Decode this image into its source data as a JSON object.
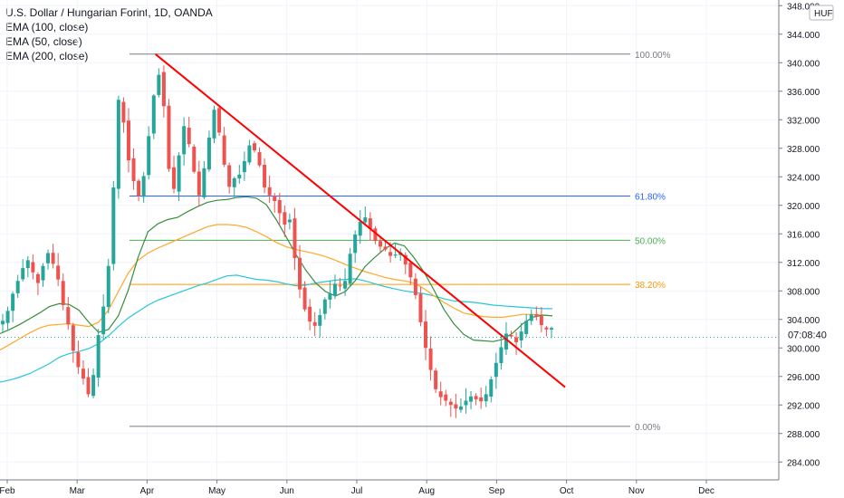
{
  "legend": {
    "title": "U.S. Dollar / Hungarian Forint, 1D, OANDA",
    "ema100": "EMA (100, close)",
    "ema50": "EMA (50, close)",
    "ema200": "EMA (200, close)"
  },
  "price_axis": {
    "currency": "HUF",
    "current_time_label": "07:08:40"
  },
  "colors": {
    "up": "#26a69a",
    "down": "#ef5350",
    "trendline": "#ff0000",
    "ema50": "#388e3c",
    "ema100": "#ffa726",
    "ema200": "#26c6da",
    "fib_0": "#787b86",
    "fib_382": "#ff9800",
    "fib_50": "#4caf50",
    "fib_618": "#2962ff",
    "fib_100": "#787b86"
  },
  "chart_data": {
    "type": "candlestick",
    "y_ticks": [
      284,
      288,
      292,
      296,
      300,
      304,
      308,
      312,
      316,
      320,
      324,
      328,
      332,
      336,
      340,
      344,
      348
    ],
    "ylim": [
      282.5,
      349
    ],
    "x_ticks": [
      "Feb",
      "Mar",
      "Apr",
      "May",
      "Jun",
      "Jul",
      "Aug",
      "Sep",
      "Oct",
      "Nov",
      "Dec"
    ],
    "fib_levels": [
      {
        "label": "100.00%",
        "value": 341.2
      },
      {
        "label": "61.80%",
        "value": 321.3
      },
      {
        "label": "50.00%",
        "value": 315.1
      },
      {
        "label": "38.20%",
        "value": 308.9
      },
      {
        "label": "0.00%",
        "value": 289.0
      }
    ],
    "trendline": {
      "start": {
        "month": 3.12,
        "value": 341.2
      },
      "end": {
        "month": 8.98,
        "value": 294.5
      }
    },
    "closes": [
      303.8,
      305.2,
      307.6,
      309.4,
      311.2,
      312.3,
      310.6,
      309.1,
      311.5,
      313.3,
      311.8,
      309.6,
      306.0,
      303.3,
      299.6,
      297.3,
      295.7,
      293.5,
      296.2,
      301.8,
      305.8,
      311.5,
      322.5,
      334.8,
      331.6,
      326.3,
      323.4,
      321.3,
      324.1,
      329.7,
      335.4,
      338.3,
      333.9,
      325.1,
      322.3,
      327.0,
      331.1,
      328.6,
      324.7,
      321.4,
      325.2,
      329.5,
      333.4,
      330.2,
      325.7,
      322.6,
      323.8,
      324.3,
      326.2,
      328.4,
      327.7,
      325.6,
      322.5,
      321.4,
      320.6,
      318.9,
      317.3,
      318.0,
      312.6,
      308.2,
      305.4,
      303.7,
      303.1,
      304.6,
      306.8,
      307.6,
      309.0,
      308.7,
      309.4,
      313.2,
      315.9,
      317.7,
      318.3,
      316.7,
      315.0,
      314.2,
      313.8,
      312.9,
      313.1,
      313.4,
      311.7,
      309.9,
      307.4,
      303.6,
      300.0,
      296.9,
      294.2,
      293.1,
      292.6,
      292.0,
      291.5,
      291.8,
      292.6,
      293.2,
      292.8,
      292.5,
      293.5,
      295.6,
      297.9,
      300.1,
      302.0,
      301.6,
      300.8,
      302.3,
      303.8,
      304.7,
      304.4,
      303.2,
      302.6,
      302.8
    ],
    "highs_lows_note": "OHLC synthesized around closes; ranges approximate",
    "ema50": [
      302.0,
      302.6,
      303.3,
      304.1,
      304.9,
      305.8,
      306.2,
      306.1,
      305.3,
      303.6,
      302.2,
      302.6,
      304.5,
      308.1,
      312.7,
      316.3,
      317.4,
      318.0,
      318.3,
      319.1,
      319.8,
      320.4,
      320.7,
      320.8,
      321.1,
      321.2,
      321.0,
      320.1,
      318.0,
      315.6,
      313.1,
      310.9,
      309.1,
      307.9,
      307.3,
      307.9,
      309.4,
      311.4,
      312.7,
      313.9,
      314.7,
      314.3,
      312.6,
      310.6,
      308.1,
      305.4,
      303.4,
      301.9,
      301.1,
      301.0,
      300.9,
      301.2,
      302.1,
      303.4,
      304.3,
      304.6,
      304.5
    ],
    "ema100": [
      299.7,
      300.5,
      301.3,
      302.1,
      302.8,
      303.2,
      303.3,
      303.4,
      303.2,
      303.0,
      303.6,
      305.3,
      307.9,
      310.5,
      312.3,
      313.3,
      314.0,
      314.6,
      315.2,
      315.8,
      316.4,
      317.0,
      317.3,
      317.3,
      317.2,
      316.9,
      316.3,
      315.6,
      314.8,
      314.2,
      313.8,
      313.5,
      313.2,
      312.8,
      312.3,
      311.7,
      311.2,
      310.7,
      310.3,
      309.9,
      309.6,
      309.4,
      309.1,
      308.3,
      307.3,
      306.4,
      305.6,
      304.9,
      304.6,
      304.4,
      304.3,
      304.3,
      304.5,
      304.7,
      304.7,
      304.6,
      304.5
    ],
    "ema200": [
      295.2,
      295.5,
      295.9,
      296.4,
      297.1,
      297.8,
      298.7,
      299.2,
      299.5,
      299.9,
      300.6,
      301.7,
      303.0,
      304.2,
      305.1,
      306.0,
      306.7,
      307.2,
      307.7,
      308.2,
      308.7,
      309.1,
      309.6,
      310.1,
      310.2,
      309.9,
      309.6,
      309.5,
      309.3,
      309.0,
      308.7,
      308.8,
      309.1,
      309.3,
      309.5,
      309.6,
      309.7,
      309.4,
      309.0,
      308.6,
      308.3,
      308.0,
      307.8,
      307.6,
      307.3,
      306.9,
      306.6,
      306.5,
      306.4,
      306.2,
      306.0,
      305.9,
      305.8,
      305.7,
      305.6,
      305.5,
      305.5
    ],
    "current_price": 301.5
  }
}
